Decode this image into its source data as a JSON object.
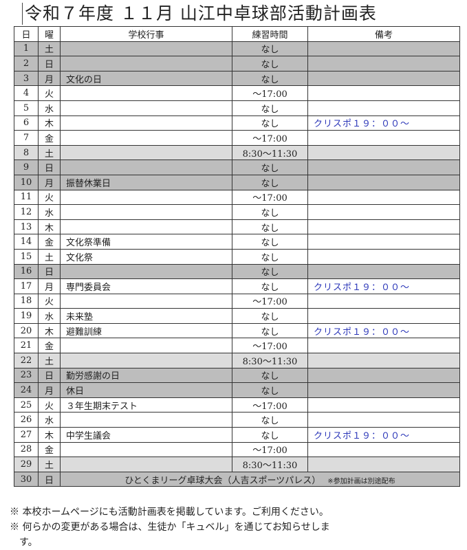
{
  "title": "令和７年度 １１月 山江中卓球部活動計画表",
  "headers": [
    "日",
    "曜",
    "学校行事",
    "練習時間",
    "備考"
  ],
  "shading_colors": {
    "dark": "#bdbdbd",
    "light": "#dcdcdc"
  },
  "note_color": "#2a35b8",
  "rows": [
    {
      "day": "1",
      "dow": "土",
      "event": "",
      "time": "なし",
      "note": "",
      "shade": "dark"
    },
    {
      "day": "2",
      "dow": "日",
      "event": "",
      "time": "なし",
      "note": "",
      "shade": "dark"
    },
    {
      "day": "3",
      "dow": "月",
      "event": "文化の日",
      "time": "なし",
      "note": "",
      "shade": "dark"
    },
    {
      "day": "4",
      "dow": "火",
      "event": "",
      "time": "～17:00",
      "note": "",
      "shade": ""
    },
    {
      "day": "5",
      "dow": "水",
      "event": "",
      "time": "なし",
      "note": "",
      "shade": ""
    },
    {
      "day": "6",
      "dow": "木",
      "event": "",
      "time": "なし",
      "note": "クリスポ１９：００～",
      "shade": ""
    },
    {
      "day": "7",
      "dow": "金",
      "event": "",
      "time": "～17:00",
      "note": "",
      "shade": ""
    },
    {
      "day": "8",
      "dow": "土",
      "event": "",
      "time": "8:30～11:30",
      "note": "",
      "shade": "light"
    },
    {
      "day": "9",
      "dow": "日",
      "event": "",
      "time": "なし",
      "note": "",
      "shade": "dark"
    },
    {
      "day": "10",
      "dow": "月",
      "event": "振替休業日",
      "time": "なし",
      "note": "",
      "shade": "dark"
    },
    {
      "day": "11",
      "dow": "火",
      "event": "",
      "time": "～17:00",
      "note": "",
      "shade": ""
    },
    {
      "day": "12",
      "dow": "水",
      "event": "",
      "time": "なし",
      "note": "",
      "shade": ""
    },
    {
      "day": "13",
      "dow": "木",
      "event": "",
      "time": "なし",
      "note": "",
      "shade": ""
    },
    {
      "day": "14",
      "dow": "金",
      "event": "文化祭準備",
      "time": "なし",
      "note": "",
      "shade": ""
    },
    {
      "day": "15",
      "dow": "土",
      "event": "文化祭",
      "time": "なし",
      "note": "",
      "shade": ""
    },
    {
      "day": "16",
      "dow": "日",
      "event": "",
      "time": "なし",
      "note": "",
      "shade": "dark"
    },
    {
      "day": "17",
      "dow": "月",
      "event": "専門委員会",
      "time": "なし",
      "note": "クリスポ１９：００～",
      "shade": ""
    },
    {
      "day": "18",
      "dow": "火",
      "event": "",
      "time": "～17:00",
      "note": "",
      "shade": ""
    },
    {
      "day": "19",
      "dow": "水",
      "event": "未来塾",
      "time": "なし",
      "note": "",
      "shade": ""
    },
    {
      "day": "20",
      "dow": "木",
      "event": "避難訓練",
      "time": "なし",
      "note": "クリスポ１９：００～",
      "shade": ""
    },
    {
      "day": "21",
      "dow": "金",
      "event": "",
      "time": "～17:00",
      "note": "",
      "shade": ""
    },
    {
      "day": "22",
      "dow": "土",
      "event": "",
      "time": "8:30～11:30",
      "note": "",
      "shade": "light"
    },
    {
      "day": "23",
      "dow": "日",
      "event": "勤労感謝の日",
      "time": "なし",
      "note": "",
      "shade": "dark"
    },
    {
      "day": "24",
      "dow": "月",
      "event": "休日",
      "time": "なし",
      "note": "",
      "shade": "dark"
    },
    {
      "day": "25",
      "dow": "火",
      "event": "３年生期末テスト",
      "time": "～17:00",
      "note": "",
      "shade": ""
    },
    {
      "day": "26",
      "dow": "水",
      "event": "",
      "time": "なし",
      "note": "",
      "shade": ""
    },
    {
      "day": "27",
      "dow": "木",
      "event": "中学生議会",
      "time": "なし",
      "note": "クリスポ１９：００～",
      "shade": ""
    },
    {
      "day": "28",
      "dow": "金",
      "event": "",
      "time": "～17:00",
      "note": "",
      "shade": ""
    },
    {
      "day": "29",
      "dow": "土",
      "event": "",
      "time": "8:30～11:30",
      "note": "",
      "shade": "light"
    }
  ],
  "last_row": {
    "day": "30",
    "dow": "日",
    "event": "ひとくまリーグ卓球大会（人吉スポーツパレス）",
    "small_note": "※参加計画は別途配布",
    "shade": "dark"
  },
  "footnotes": [
    "※ 本校ホームページにも活動計画表を掲載しています。ご利用ください。",
    "※ 何らかの変更がある場合は、生徒か「キュベル」を通じてお知らせしま",
    "　す。"
  ]
}
